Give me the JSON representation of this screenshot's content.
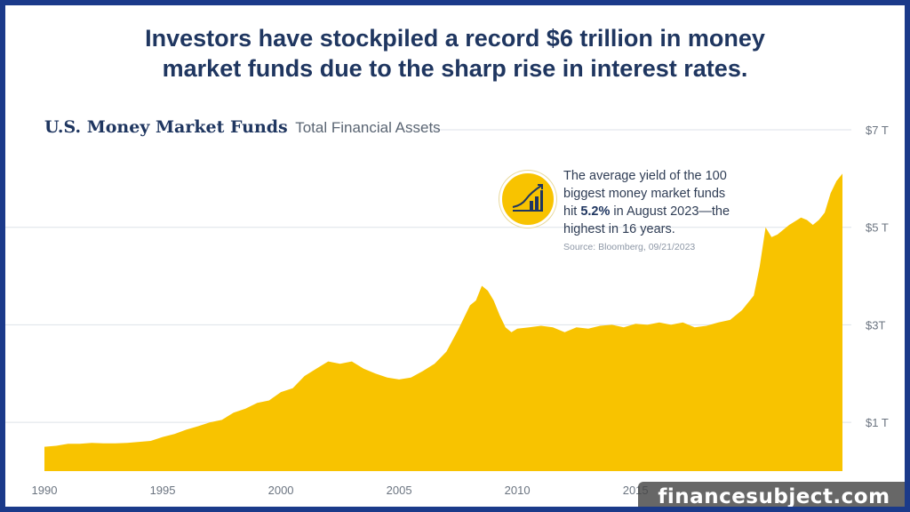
{
  "headline": {
    "line1": "Investors have stockpiled a record $6 trillion in money",
    "line2": "market funds due to the sharp rise in interest rates."
  },
  "chart_title": {
    "main": "U.S. Money Market Funds",
    "sub": "Total Financial Assets"
  },
  "callout": {
    "text_before": "The average yield of the 100 biggest money market funds hit ",
    "highlight": "5.2%",
    "text_after": " in August 2023—the highest in 16 years.",
    "source": "Source: Bloomberg, 09/21/2023",
    "icon": "growth-chart-icon"
  },
  "watermark": "financesubject.com",
  "colors": {
    "fill": "#f8c300",
    "title": "#1f3660",
    "grid": "#dde2e8",
    "axis_text": "#6b7480"
  },
  "chart_data": {
    "type": "area",
    "title": "U.S. Money Market Funds Total Financial Assets",
    "x_ticks": [
      "1990",
      "1995",
      "2000",
      "2005",
      "2010",
      "2015"
    ],
    "y_ticks": [
      {
        "value": 1,
        "label": "$1 T"
      },
      {
        "value": 3,
        "label": "$3T"
      },
      {
        "value": 5,
        "label": "$5 T"
      },
      {
        "value": 7,
        "label": "$7 T"
      }
    ],
    "xlim": [
      1990,
      2023.75
    ],
    "ylim": [
      0,
      7
    ],
    "grid": true,
    "unit": "trillion USD",
    "x": [
      1990,
      1990.5,
      1991,
      1991.5,
      1992,
      1992.5,
      1993,
      1993.5,
      1994,
      1994.5,
      1995,
      1995.5,
      1996,
      1996.5,
      1997,
      1997.5,
      1998,
      1998.5,
      1999,
      1999.5,
      2000,
      2000.5,
      2001,
      2001.5,
      2002,
      2002.5,
      2003,
      2003.5,
      2004,
      2004.5,
      2005,
      2005.5,
      2006,
      2006.5,
      2007,
      2007.5,
      2008,
      2008.25,
      2008.5,
      2008.75,
      2009,
      2009.25,
      2009.5,
      2009.75,
      2010,
      2010.5,
      2011,
      2011.5,
      2012,
      2012.5,
      2013,
      2013.5,
      2014,
      2014.5,
      2015,
      2015.5,
      2016,
      2016.5,
      2017,
      2017.5,
      2018,
      2018.5,
      2019,
      2019.5,
      2020,
      2020.25,
      2020.5,
      2020.75,
      2021,
      2021.5,
      2022,
      2022.25,
      2022.5,
      2022.75,
      2023,
      2023.25,
      2023.5,
      2023.75
    ],
    "y": [
      0.5,
      0.52,
      0.56,
      0.56,
      0.58,
      0.57,
      0.57,
      0.58,
      0.6,
      0.62,
      0.7,
      0.76,
      0.85,
      0.92,
      1.0,
      1.05,
      1.2,
      1.28,
      1.4,
      1.45,
      1.62,
      1.7,
      1.95,
      2.1,
      2.25,
      2.2,
      2.25,
      2.1,
      2.0,
      1.92,
      1.88,
      1.92,
      2.05,
      2.2,
      2.45,
      2.9,
      3.4,
      3.5,
      3.8,
      3.7,
      3.5,
      3.2,
      2.95,
      2.85,
      2.92,
      2.95,
      2.98,
      2.95,
      2.85,
      2.95,
      2.92,
      2.98,
      3.0,
      2.95,
      3.02,
      3.0,
      3.05,
      3.0,
      3.05,
      2.95,
      2.98,
      3.05,
      3.1,
      3.3,
      3.6,
      4.2,
      5.0,
      4.8,
      4.85,
      5.05,
      5.2,
      5.15,
      5.05,
      5.15,
      5.3,
      5.7,
      5.95,
      6.1
    ]
  }
}
